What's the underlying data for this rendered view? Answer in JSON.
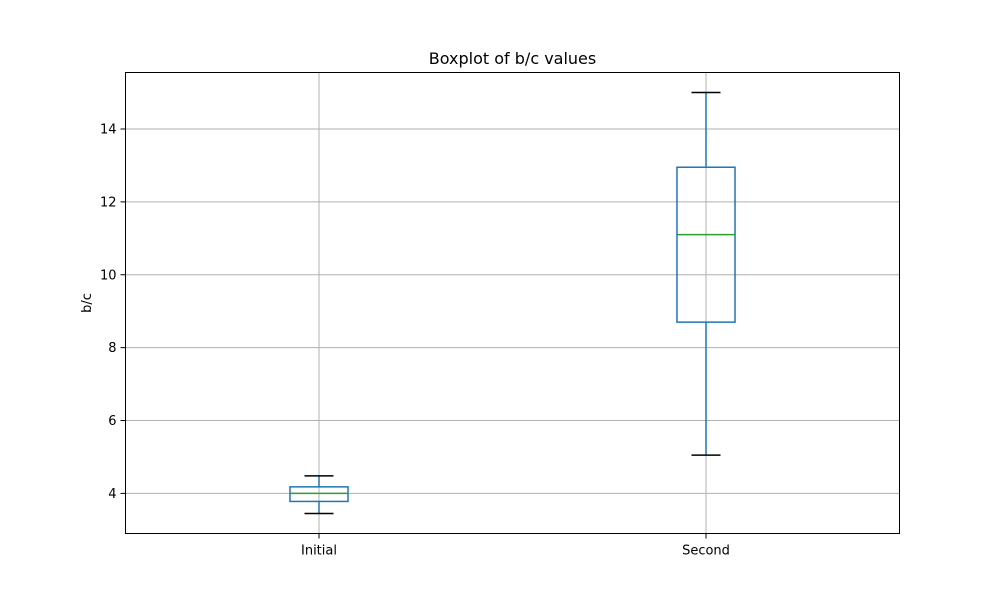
{
  "chart_data": {
    "type": "box",
    "title": "Boxplot of b/c values",
    "xlabel": "",
    "ylabel": "b/c",
    "categories": [
      "Initial",
      "Second"
    ],
    "boxes": [
      {
        "label": "Initial",
        "whisker_low": 3.45,
        "q1": 3.78,
        "median": 4.0,
        "q3": 4.18,
        "whisker_high": 4.48
      },
      {
        "label": "Second",
        "whisker_low": 5.05,
        "q1": 8.7,
        "median": 11.1,
        "q3": 12.95,
        "whisker_high": 15.0
      }
    ],
    "ylim": [
      2.9,
      15.55
    ],
    "yticks": [
      4,
      6,
      8,
      10,
      12,
      14
    ],
    "grid": true,
    "colors": {
      "box": "#1f77b4",
      "median": "#2ca02c",
      "cap": "#000000",
      "grid": "#b0b0b0"
    }
  }
}
